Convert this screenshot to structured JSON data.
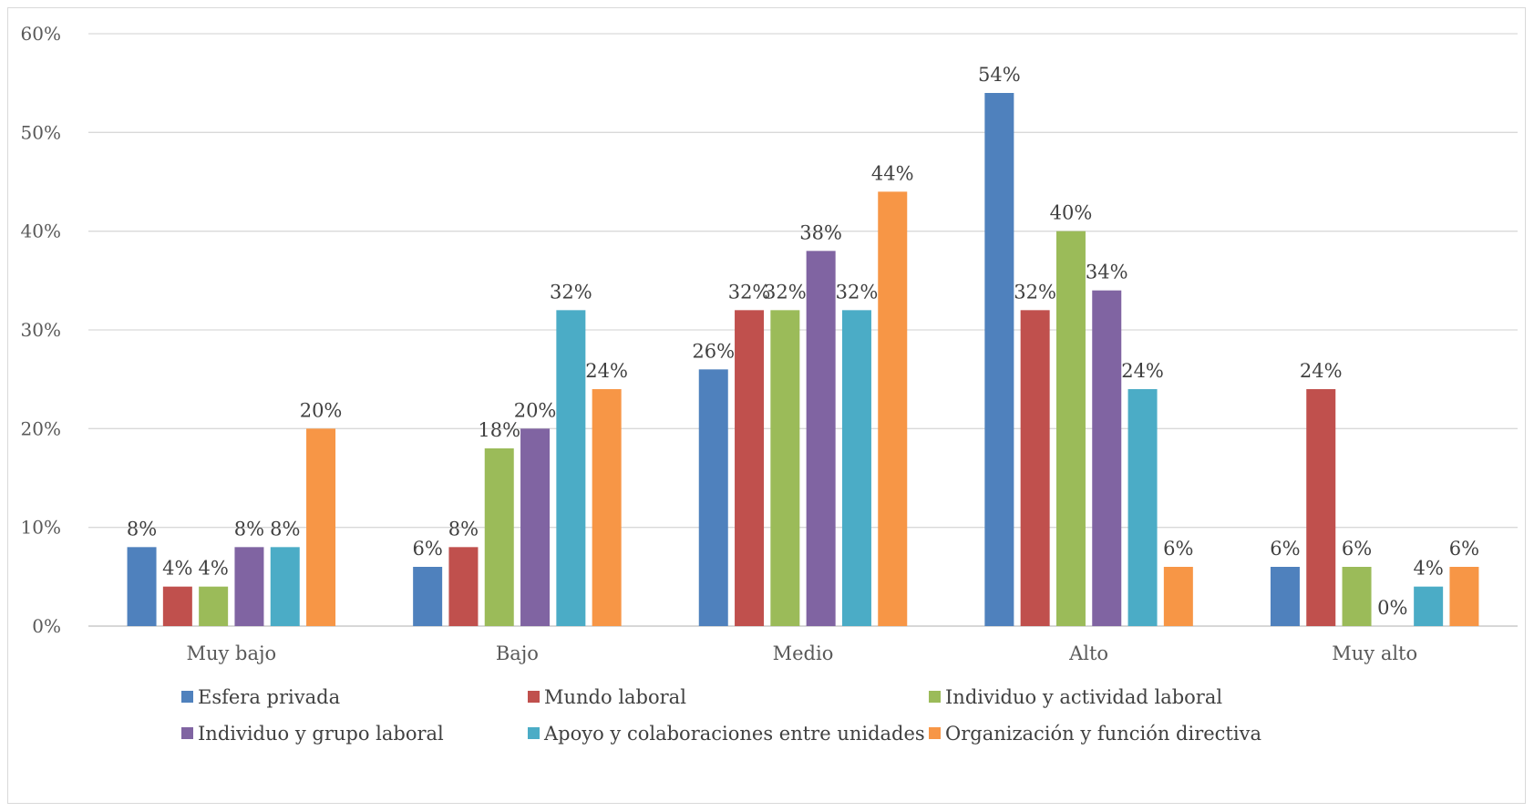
{
  "chart_data": {
    "type": "bar",
    "categories": [
      "Muy bajo",
      "Bajo",
      "Medio",
      "Alto",
      "Muy alto"
    ],
    "series": [
      {
        "name": "Esfera privada",
        "color": "#4f81bd",
        "values": [
          8,
          6,
          26,
          54,
          6
        ]
      },
      {
        "name": " Mundo laboral",
        "color": "#c0504d",
        "values": [
          4,
          8,
          32,
          32,
          24
        ]
      },
      {
        "name": "Individuo y actividad laboral",
        "color": "#9bbb59",
        "values": [
          4,
          18,
          32,
          40,
          6
        ]
      },
      {
        "name": " Individuo y grupo  laboral",
        "color": "#8064a2",
        "values": [
          8,
          20,
          38,
          34,
          0
        ]
      },
      {
        "name": "Apoyo y colaboraciones entre unidades",
        "color": "#4bacc6",
        "values": [
          8,
          32,
          32,
          24,
          4
        ]
      },
      {
        "name": "Organización y función directiva",
        "color": "#f79646",
        "values": [
          20,
          24,
          44,
          6,
          6
        ]
      }
    ],
    "ylim": [
      0,
      60
    ],
    "yticks": [
      0,
      10,
      20,
      30,
      40,
      50,
      60
    ],
    "value_suffix": "%",
    "grid": true,
    "legend_position": "bottom",
    "title": "",
    "xlabel": "",
    "ylabel": ""
  }
}
